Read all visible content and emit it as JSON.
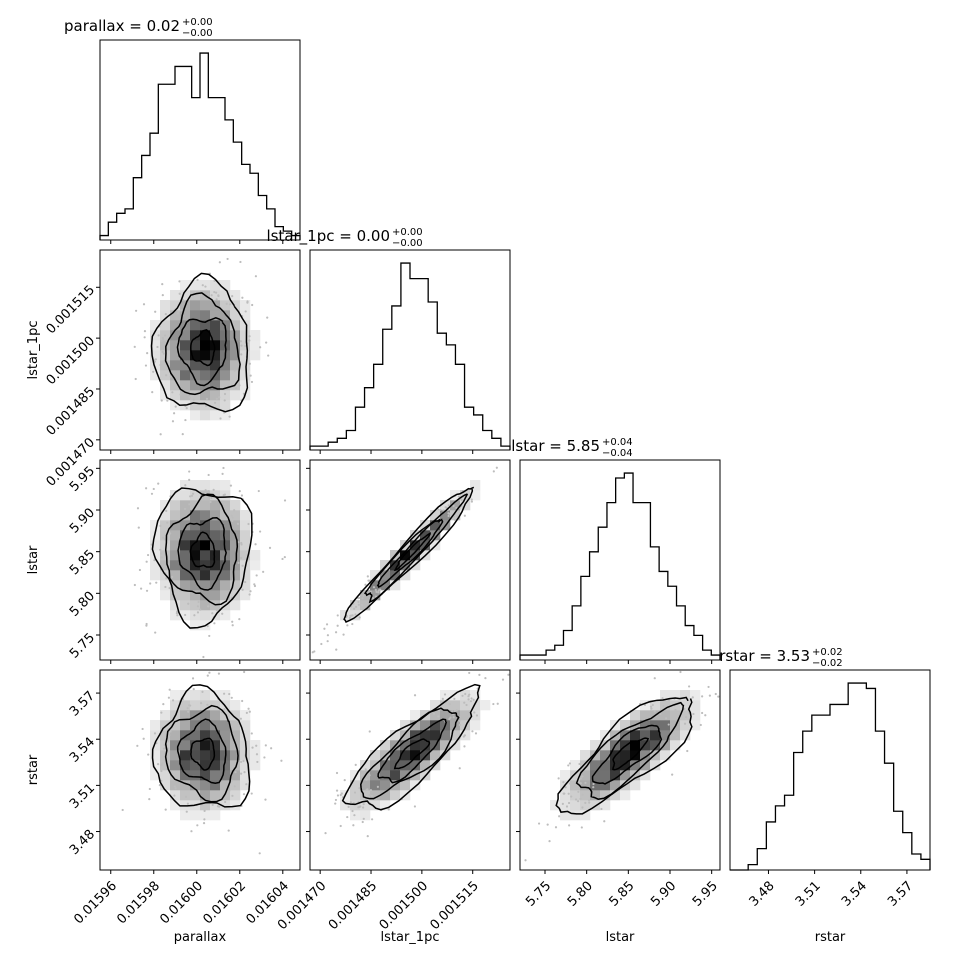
{
  "chart_data": {
    "type": "corner",
    "parameters": [
      "parallax",
      "lstar_1pc",
      "lstar",
      "rstar"
    ],
    "titles": [
      {
        "label": "parallax",
        "value": "0.02",
        "plus": "+0.00",
        "minus": "−0.00"
      },
      {
        "label": "lstar_1pc",
        "value": "0.00",
        "plus": "+0.00",
        "minus": "−0.00"
      },
      {
        "label": "lstar",
        "value": "5.85",
        "plus": "+0.04",
        "minus": "−0.04"
      },
      {
        "label": "rstar",
        "value": "3.53",
        "plus": "+0.02",
        "minus": "−0.02"
      }
    ],
    "axes": [
      {
        "name": "parallax",
        "range": [
          0.015955,
          0.016048
        ],
        "ticks": [
          0.01596,
          0.01598,
          0.016,
          0.01602,
          0.01604
        ],
        "tick_labels": [
          "0.01596",
          "0.01598",
          "0.01600",
          "0.01602",
          "0.01604"
        ],
        "center": 0.016003,
        "sigma": 1.1e-05
      },
      {
        "name": "lstar_1pc",
        "range": [
          0.001467,
          0.001526
        ],
        "ticks": [
          0.00147,
          0.001485,
          0.0015,
          0.001515
        ],
        "tick_labels": [
          "0.001470",
          "0.001485",
          "0.001500",
          "0.001515"
        ],
        "center": 0.001497,
        "sigma": 9.5e-06
      },
      {
        "name": "lstar",
        "range": [
          5.72,
          5.96
        ],
        "ticks": [
          5.75,
          5.8,
          5.85,
          5.9,
          5.95
        ],
        "tick_labels": [
          "5.75",
          "5.80",
          "5.85",
          "5.90",
          "5.95"
        ],
        "center": 5.85,
        "sigma": 0.04
      },
      {
        "name": "rstar",
        "range": [
          3.455,
          3.585
        ],
        "ticks": [
          3.48,
          3.51,
          3.54,
          3.57
        ],
        "tick_labels": [
          "3.48",
          "3.51",
          "3.54",
          "3.57"
        ],
        "center": 3.531,
        "sigma": 0.019
      }
    ],
    "histograms": [
      {
        "param": "parallax",
        "counts": [
          1,
          4,
          6,
          7,
          14,
          19,
          24,
          35,
          35,
          39,
          39,
          32,
          42,
          32,
          32,
          27,
          22,
          17,
          15,
          10,
          7,
          3,
          2,
          1
        ]
      },
      {
        "param": "lstar_1pc",
        "counts": [
          1,
          1,
          2,
          3,
          5,
          11,
          16,
          22,
          31,
          37,
          48,
          44,
          44,
          38,
          30,
          27,
          22,
          11,
          9,
          5,
          3,
          1
        ]
      },
      {
        "param": "lstar",
        "counts": [
          1,
          1,
          1,
          2,
          3,
          6,
          11,
          17,
          22,
          27,
          32,
          37,
          38,
          32,
          32,
          23,
          18,
          15,
          11,
          7,
          5,
          2,
          1
        ]
      },
      {
        "param": "rstar",
        "counts": [
          0,
          0,
          1,
          4,
          9,
          12,
          14,
          22,
          26,
          29,
          29,
          31,
          31,
          35,
          35,
          34,
          26,
          20,
          11,
          7,
          3,
          2
        ]
      }
    ],
    "correlations": [
      {
        "x": "lstar_1pc",
        "y": "parallax",
        "rho": 0.0
      },
      {
        "x": "lstar",
        "y": "parallax",
        "rho": 0.0
      },
      {
        "x": "lstar",
        "y": "lstar_1pc",
        "rho": 0.97
      },
      {
        "x": "rstar",
        "y": "parallax",
        "rho": -0.05
      },
      {
        "x": "rstar",
        "y": "lstar_1pc",
        "rho": 0.82
      },
      {
        "x": "rstar",
        "y": "lstar",
        "rho": 0.8
      }
    ],
    "colors": {
      "line": "#000000",
      "axes": "#000000",
      "density": "#000000",
      "background": "#ffffff"
    }
  }
}
